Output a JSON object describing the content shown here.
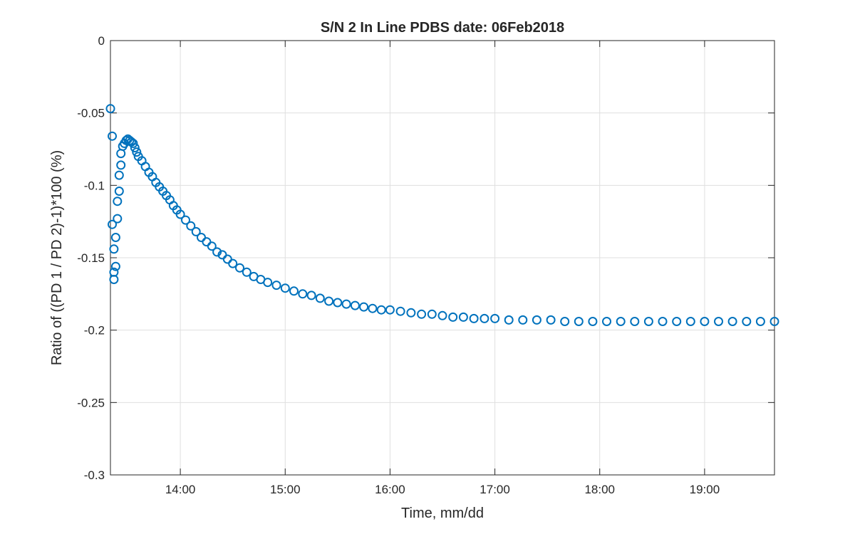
{
  "chart_data": {
    "type": "scatter",
    "title": "S/N 2 In Line PDBS date: 06Feb2018",
    "xlabel": "Time, mm/dd",
    "ylabel": "Ratio of ((PD 1 / PD 2)-1)*100 (%)",
    "xlim": [
      "13:20",
      "19:40"
    ],
    "ylim": [
      -0.3,
      0
    ],
    "x_ticks": [
      "14:00",
      "15:00",
      "16:00",
      "17:00",
      "18:00",
      "19:00"
    ],
    "y_ticks": [
      {
        "value": 0,
        "label": "0"
      },
      {
        "value": -0.05,
        "label": "-0.05"
      },
      {
        "value": -0.1,
        "label": "-0.1"
      },
      {
        "value": -0.15,
        "label": "-0.15"
      },
      {
        "value": -0.2,
        "label": "-0.2"
      },
      {
        "value": -0.25,
        "label": "-0.25"
      },
      {
        "value": -0.3,
        "label": "-0.3"
      }
    ],
    "grid": true,
    "marker": "circle-open",
    "color": "#0072BD",
    "series": [
      {
        "x": [
          "13:20",
          "13:21",
          "13:21",
          "13:22",
          "13:22",
          "13:22",
          "13:23",
          "13:23",
          "13:24",
          "13:24",
          "13:25",
          "13:25",
          "13:26",
          "13:26",
          "13:27",
          "13:28",
          "13:29",
          "13:30",
          "13:31",
          "13:32",
          "13:33",
          "13:34",
          "13:35",
          "13:36",
          "13:38",
          "13:40",
          "13:42",
          "13:44",
          "13:46",
          "13:48",
          "13:50",
          "13:52",
          "13:54",
          "13:56",
          "13:58",
          "14:00",
          "14:03",
          "14:06",
          "14:09",
          "14:12",
          "14:15",
          "14:18",
          "14:21",
          "14:24",
          "14:27",
          "14:30",
          "14:34",
          "14:38",
          "14:42",
          "14:46",
          "14:50",
          "14:55",
          "15:00",
          "15:05",
          "15:10",
          "15:15",
          "15:20",
          "15:25",
          "15:30",
          "15:35",
          "15:40",
          "15:45",
          "15:50",
          "15:55",
          "16:00",
          "16:06",
          "16:12",
          "16:18",
          "16:24",
          "16:30",
          "16:36",
          "16:42",
          "16:48",
          "16:54",
          "17:00",
          "17:08",
          "17:16",
          "17:24",
          "17:32",
          "17:40",
          "17:48",
          "17:56",
          "18:04",
          "18:12",
          "18:20",
          "18:28",
          "18:36",
          "18:44",
          "18:52",
          "19:00",
          "19:08",
          "19:16",
          "19:24",
          "19:32",
          "19:40"
        ],
        "y": [
          -0.047,
          -0.066,
          -0.127,
          -0.16,
          -0.165,
          -0.144,
          -0.136,
          -0.156,
          -0.123,
          -0.111,
          -0.104,
          -0.093,
          -0.086,
          -0.078,
          -0.073,
          -0.071,
          -0.069,
          -0.068,
          -0.069,
          -0.07,
          -0.071,
          -0.074,
          -0.077,
          -0.08,
          -0.083,
          -0.087,
          -0.091,
          -0.094,
          -0.098,
          -0.101,
          -0.104,
          -0.107,
          -0.11,
          -0.114,
          -0.117,
          -0.12,
          -0.124,
          -0.128,
          -0.132,
          -0.136,
          -0.139,
          -0.142,
          -0.146,
          -0.148,
          -0.151,
          -0.154,
          -0.157,
          -0.16,
          -0.163,
          -0.165,
          -0.167,
          -0.169,
          -0.171,
          -0.173,
          -0.175,
          -0.176,
          -0.178,
          -0.18,
          -0.181,
          -0.182,
          -0.183,
          -0.184,
          -0.185,
          -0.186,
          -0.186,
          -0.187,
          -0.188,
          -0.189,
          -0.189,
          -0.19,
          -0.191,
          -0.191,
          -0.192,
          -0.192,
          -0.192,
          -0.193,
          -0.193,
          -0.193,
          -0.193,
          -0.194,
          -0.194,
          -0.194,
          -0.194,
          -0.194,
          -0.194,
          -0.194,
          -0.194,
          -0.194,
          -0.194,
          -0.194,
          -0.194,
          -0.194,
          -0.194,
          -0.194,
          -0.194
        ]
      }
    ]
  }
}
